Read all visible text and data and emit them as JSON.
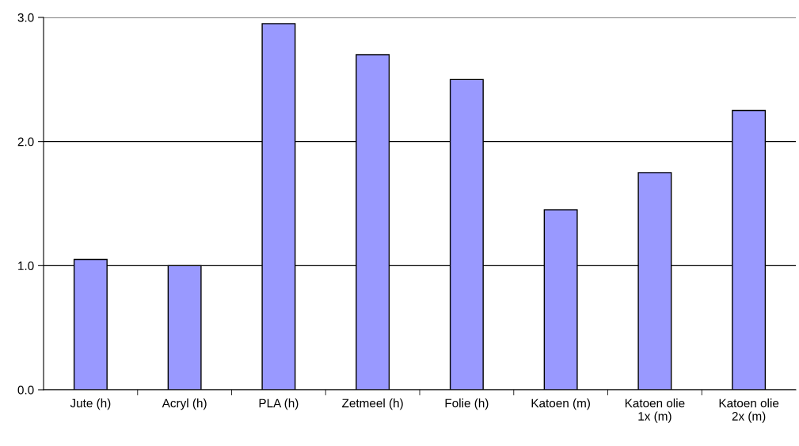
{
  "chart_data": {
    "type": "bar",
    "categories": [
      "Jute (h)",
      "Acryl (h)",
      "PLA (h)",
      "Zetmeel (h)",
      "Folie (h)",
      "Katoen (m)",
      "Katoen olie\n1x (m)",
      "Katoen olie\n2x (m)"
    ],
    "values": [
      1.05,
      1.0,
      2.95,
      2.7,
      2.5,
      1.45,
      1.75,
      2.25
    ],
    "color": "#9999ff",
    "ylim": [
      0,
      3
    ],
    "yticks": [
      {
        "value": 0,
        "label": "0.0"
      },
      {
        "value": 1,
        "label": "1.0"
      },
      {
        "value": 2,
        "label": "2.0"
      },
      {
        "value": 3,
        "label": "3.0"
      }
    ],
    "grid": "y"
  }
}
